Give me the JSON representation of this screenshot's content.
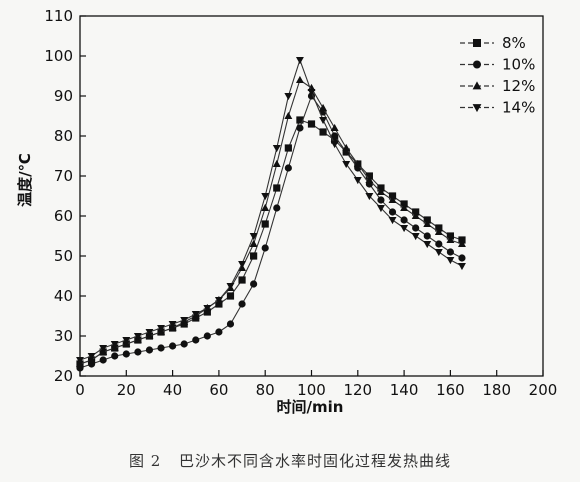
{
  "caption": {
    "label": "图 2",
    "text": "巴沙木不同含水率时固化过程发热曲线"
  },
  "chart_data": {
    "type": "line",
    "xlabel": "时间/min",
    "ylabel": "温度/℃",
    "xlim": [
      0,
      200
    ],
    "ylim": [
      20,
      110
    ],
    "x_ticks": [
      0,
      20,
      40,
      60,
      80,
      100,
      120,
      140,
      160,
      180,
      200
    ],
    "y_ticks": [
      20,
      30,
      40,
      50,
      60,
      70,
      80,
      90,
      100,
      110
    ],
    "grid": false,
    "legend_position": "top-right",
    "series": [
      {
        "name": "8%",
        "marker": "square",
        "points": [
          [
            0,
            23
          ],
          [
            5,
            24
          ],
          [
            10,
            26
          ],
          [
            15,
            27
          ],
          [
            20,
            28
          ],
          [
            25,
            29
          ],
          [
            30,
            30
          ],
          [
            35,
            31
          ],
          [
            40,
            32
          ],
          [
            45,
            33
          ],
          [
            50,
            34.5
          ],
          [
            55,
            36
          ],
          [
            60,
            38
          ],
          [
            65,
            40
          ],
          [
            70,
            44
          ],
          [
            75,
            50
          ],
          [
            80,
            58
          ],
          [
            85,
            67
          ],
          [
            90,
            77
          ],
          [
            95,
            84
          ],
          [
            100,
            83
          ],
          [
            105,
            81
          ],
          [
            110,
            79
          ],
          [
            115,
            76
          ],
          [
            120,
            73
          ],
          [
            125,
            70
          ],
          [
            130,
            67
          ],
          [
            135,
            65
          ],
          [
            140,
            63
          ],
          [
            145,
            61
          ],
          [
            150,
            59
          ],
          [
            155,
            57
          ],
          [
            160,
            55
          ],
          [
            165,
            54
          ]
        ]
      },
      {
        "name": "10%",
        "marker": "circle",
        "points": [
          [
            0,
            22
          ],
          [
            5,
            23
          ],
          [
            10,
            24
          ],
          [
            15,
            25
          ],
          [
            20,
            25.5
          ],
          [
            25,
            26
          ],
          [
            30,
            26.5
          ],
          [
            35,
            27
          ],
          [
            40,
            27.5
          ],
          [
            45,
            28
          ],
          [
            50,
            29
          ],
          [
            55,
            30
          ],
          [
            60,
            31
          ],
          [
            65,
            33
          ],
          [
            70,
            38
          ],
          [
            75,
            43
          ],
          [
            80,
            52
          ],
          [
            85,
            62
          ],
          [
            90,
            72
          ],
          [
            95,
            82
          ],
          [
            100,
            90
          ],
          [
            105,
            86
          ],
          [
            110,
            80
          ],
          [
            115,
            76
          ],
          [
            120,
            72
          ],
          [
            125,
            68
          ],
          [
            130,
            64
          ],
          [
            135,
            61
          ],
          [
            140,
            59
          ],
          [
            145,
            57
          ],
          [
            150,
            55
          ],
          [
            155,
            53
          ],
          [
            160,
            51
          ],
          [
            165,
            49.5
          ]
        ]
      },
      {
        "name": "12%",
        "marker": "triangle-up",
        "points": [
          [
            0,
            23
          ],
          [
            5,
            24
          ],
          [
            10,
            26
          ],
          [
            15,
            27
          ],
          [
            20,
            28
          ],
          [
            25,
            29
          ],
          [
            30,
            30
          ],
          [
            35,
            31
          ],
          [
            40,
            32
          ],
          [
            45,
            33.5
          ],
          [
            50,
            35
          ],
          [
            55,
            37
          ],
          [
            60,
            39
          ],
          [
            65,
            42
          ],
          [
            70,
            47
          ],
          [
            75,
            53
          ],
          [
            80,
            62
          ],
          [
            85,
            73
          ],
          [
            90,
            85
          ],
          [
            95,
            94
          ],
          [
            100,
            92
          ],
          [
            105,
            87
          ],
          [
            110,
            82
          ],
          [
            115,
            77
          ],
          [
            120,
            73
          ],
          [
            125,
            69
          ],
          [
            130,
            66
          ],
          [
            135,
            64
          ],
          [
            140,
            62
          ],
          [
            145,
            60
          ],
          [
            150,
            58
          ],
          [
            155,
            56
          ],
          [
            160,
            54
          ],
          [
            165,
            53
          ]
        ]
      },
      {
        "name": "14%",
        "marker": "triangle-down",
        "points": [
          [
            0,
            24
          ],
          [
            5,
            25
          ],
          [
            10,
            27
          ],
          [
            15,
            28
          ],
          [
            20,
            29
          ],
          [
            25,
            30
          ],
          [
            30,
            31
          ],
          [
            35,
            32
          ],
          [
            40,
            33
          ],
          [
            45,
            34
          ],
          [
            50,
            35.5
          ],
          [
            55,
            37
          ],
          [
            60,
            39
          ],
          [
            65,
            42.5
          ],
          [
            70,
            48
          ],
          [
            75,
            55
          ],
          [
            80,
            65
          ],
          [
            85,
            77
          ],
          [
            90,
            90
          ],
          [
            95,
            99
          ],
          [
            100,
            91
          ],
          [
            105,
            84
          ],
          [
            110,
            78
          ],
          [
            115,
            73
          ],
          [
            120,
            69
          ],
          [
            125,
            65
          ],
          [
            130,
            62
          ],
          [
            135,
            59
          ],
          [
            140,
            57
          ],
          [
            145,
            55
          ],
          [
            150,
            53
          ],
          [
            155,
            51
          ],
          [
            160,
            49
          ],
          [
            165,
            47.5
          ]
        ]
      }
    ]
  }
}
